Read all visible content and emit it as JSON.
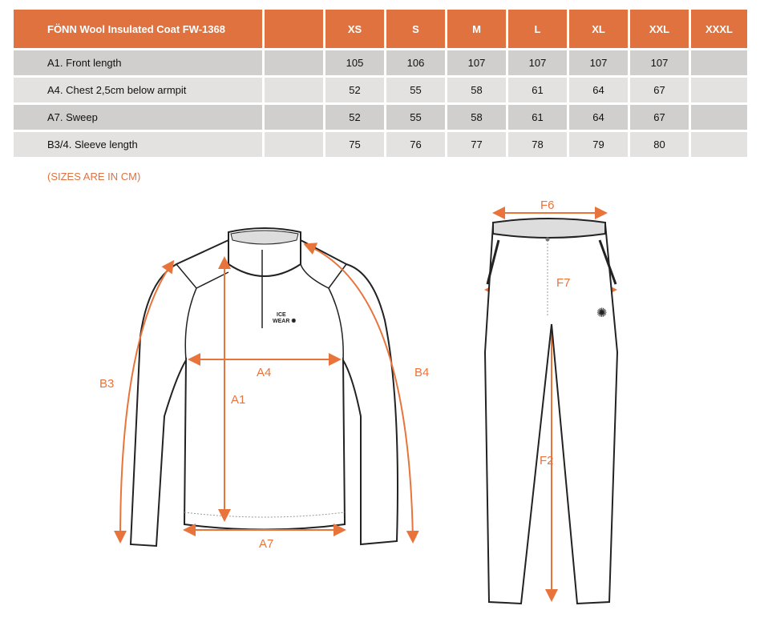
{
  "table": {
    "title": "FÖNN Wool Insulated Coat FW-1368",
    "sizes": [
      "XS",
      "S",
      "M",
      "L",
      "XL",
      "XXL",
      "XXXL"
    ],
    "rows": [
      {
        "label": "A1. Front length",
        "values": [
          "105",
          "106",
          "107",
          "107",
          "107",
          "107",
          ""
        ]
      },
      {
        "label": "A4. Chest 2,5cm below armpit",
        "values": [
          "52",
          "55",
          "58",
          "61",
          "64",
          "67",
          ""
        ]
      },
      {
        "label": "A7. Sweep",
        "values": [
          "52",
          "55",
          "58",
          "61",
          "64",
          "67",
          ""
        ]
      },
      {
        "label": "B3/4. Sleeve length",
        "values": [
          "75",
          "76",
          "77",
          "78",
          "79",
          "80",
          ""
        ]
      }
    ]
  },
  "note": "(SIZES ARE IN CM)",
  "diagram": {
    "jacket_labels": {
      "b3": "B3",
      "a4": "A4",
      "a1": "A1",
      "b4": "B4",
      "a7": "A7",
      "logo": "ICE WEAR"
    },
    "pants_labels": {
      "f6": "F6",
      "f7": "F7",
      "f2": "F2"
    }
  },
  "colors": {
    "header": "#E07240",
    "row_dark": "#D0CFCD",
    "row_light": "#E3E2E0",
    "arrow": "#E8743B"
  }
}
